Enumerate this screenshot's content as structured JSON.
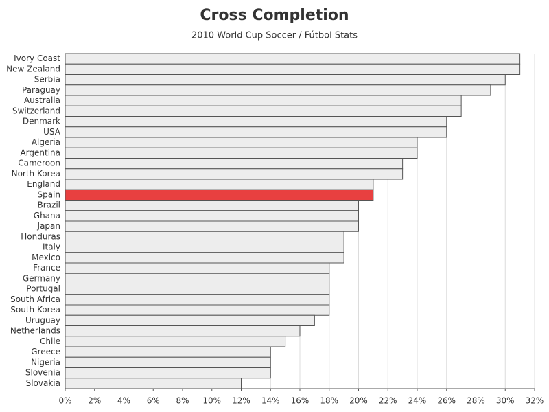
{
  "chart_data": {
    "type": "hbar",
    "title": "Cross Completion",
    "subtitle": "2010 World Cup Soccer / Fútbol Stats",
    "categories": [
      "Ivory Coast",
      "New Zealand",
      "Serbia",
      "Paraguay",
      "Australia",
      "Switzerland",
      "Denmark",
      "USA",
      "Algeria",
      "Argentina",
      "Cameroon",
      "North Korea",
      "England",
      "Spain",
      "Brazil",
      "Ghana",
      "Japan",
      "Honduras",
      "Italy",
      "Mexico",
      "France",
      "Germany",
      "Portugal",
      "South Africa",
      "South Korea",
      "Uruguay",
      "Netherlands",
      "Chile",
      "Greece",
      "Nigeria",
      "Slovenia",
      "Slovakia"
    ],
    "values": [
      31,
      31,
      30,
      29,
      27,
      27,
      26,
      26,
      24,
      24,
      23,
      23,
      21,
      21,
      20,
      20,
      20,
      19,
      19,
      19,
      18,
      18,
      18,
      18,
      18,
      17,
      16,
      15,
      14,
      14,
      14,
      12
    ],
    "color": "#ededed",
    "highlight": {
      "category": "Spain",
      "color": "#e84040"
    },
    "xlim": [
      0,
      32
    ],
    "xticks": [
      {
        "value": 0,
        "label": "0%"
      },
      {
        "value": 2,
        "label": "2%"
      },
      {
        "value": 4,
        "label": "4%"
      },
      {
        "value": 6,
        "label": "6%"
      },
      {
        "value": 8,
        "label": "8%"
      },
      {
        "value": 10,
        "label": "10%"
      },
      {
        "value": 12,
        "label": "12%"
      },
      {
        "value": 14,
        "label": "14%"
      },
      {
        "value": 16,
        "label": "16%"
      },
      {
        "value": 18,
        "label": "18%"
      },
      {
        "value": 20,
        "label": "20%"
      },
      {
        "value": 22,
        "label": "22%"
      },
      {
        "value": 24,
        "label": "24%"
      },
      {
        "value": 26,
        "label": "26%"
      },
      {
        "value": 28,
        "label": "28%"
      },
      {
        "value": 30,
        "label": "30%"
      },
      {
        "value": 32,
        "label": "32%"
      }
    ],
    "grid": true
  }
}
